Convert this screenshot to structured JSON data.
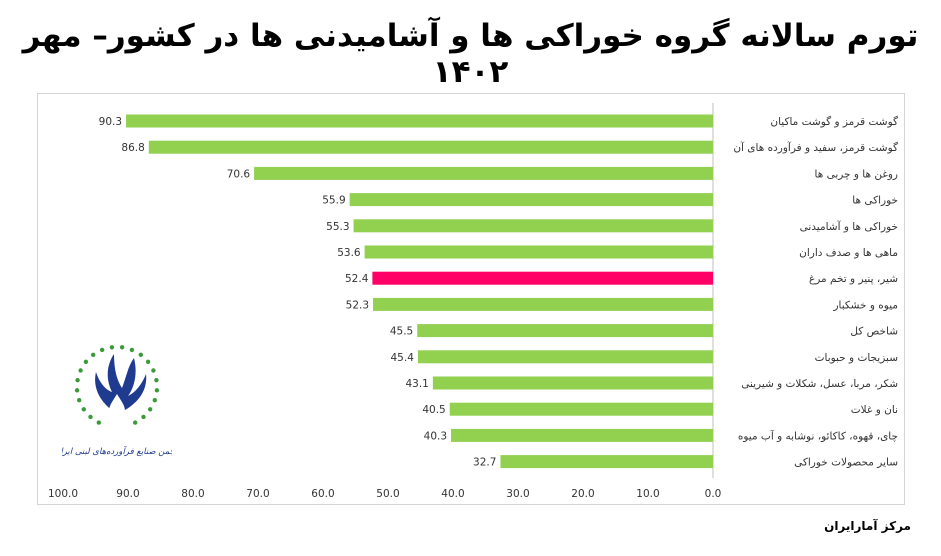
{
  "title": "تورم سالانه گروه خوراکی ها و آشامیدنی ها در کشور– مهر ۱۴۰۲",
  "source": "مرکز آمارایران",
  "logo_text": "انجمن صنایع فرآورده‌های لبنی ایران",
  "colors": {
    "bar": "#92d050",
    "highlight": "#ff0066",
    "axis_text": "#333333"
  },
  "chart_data": {
    "type": "bar",
    "orientation": "horizontal",
    "x_reversed": true,
    "categories": [
      "گوشت قرمز و گوشت ماکیان",
      "گوشت قرمز، سفید و فرآورده های آن",
      "روغن ها و چربی ها",
      "خوراکی ها",
      "خوراکی ها و آشامیدنی",
      "ماهی ها و صدف داران",
      "شیر، پنیر و تخم مرغ",
      "میوه و خشکبار",
      "شاخص کل",
      "سبزیجات و حبوبات",
      "شکر، مربا، عسل، شکلات و شیرینی",
      "نان و غلات",
      "چای، قهوه، کاکائو، نوشابه و آب میوه",
      "سایر محصولات خوراکی"
    ],
    "values": [
      90.3,
      86.8,
      70.6,
      55.9,
      55.3,
      53.6,
      52.4,
      52.3,
      45.5,
      45.4,
      43.1,
      40.5,
      40.3,
      32.7
    ],
    "value_labels": [
      "90.3",
      "86.8",
      "70.6",
      "55.9",
      "55.3",
      "53.6",
      "52.4",
      "52.3",
      "45.5",
      "45.4",
      "43.1",
      "40.5",
      "40.3",
      "32.7"
    ],
    "highlight_category": "شیر، پنیر و تخم مرغ",
    "xlim": [
      0,
      100
    ],
    "ticks": [
      100,
      90,
      80,
      70,
      60,
      50,
      40,
      30,
      20,
      10,
      0
    ],
    "tick_labels": [
      "100.0",
      "90.0",
      "80.0",
      "70.0",
      "60.0",
      "50.0",
      "40.0",
      "30.0",
      "20.0",
      "10.0",
      "0.0"
    ],
    "grid": false,
    "legend": "none"
  }
}
